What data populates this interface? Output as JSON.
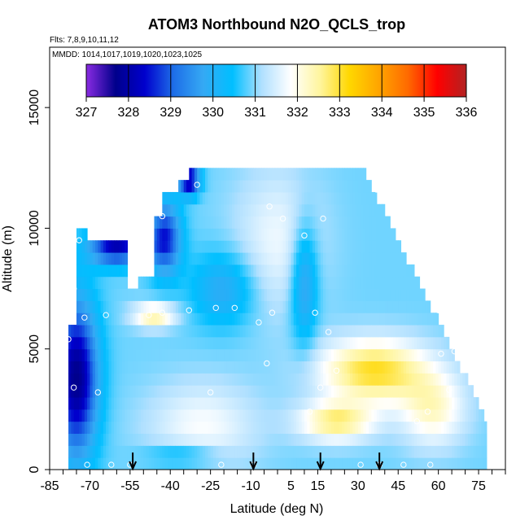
{
  "chart_data": {
    "type": "heatmap",
    "title": "ATOM3 Northbound N2O_QCLS_trop",
    "flights_note": "Flts: 7,8,9,10,11,12",
    "dates_note": "MMDD: 1014,1017,1019,1020,1023,1025",
    "xlabel": "Latitude (deg N)",
    "ylabel": "Altitude (m)",
    "xlim": [
      -85,
      85
    ],
    "ylim": [
      0,
      17500
    ],
    "x_ticks": [
      "-85",
      "-70",
      "-55",
      "-40",
      "-25",
      "-10",
      "5",
      "15",
      "30",
      "45",
      "60",
      "75"
    ],
    "x_tick_values": [
      -85,
      -70,
      -55,
      -40,
      -25,
      -10,
      5,
      15,
      30,
      45,
      60,
      75
    ],
    "y_ticks": [
      "0",
      "5000",
      "10000",
      "15000"
    ],
    "y_tick_values": [
      0,
      5000,
      10000,
      15000
    ],
    "colorbar": {
      "ticks": [
        "327",
        "328",
        "329",
        "330",
        "331",
        "332",
        "333",
        "334",
        "335",
        "336"
      ],
      "min": 327,
      "max": 336,
      "colors": [
        "#8a2be2",
        "#00008b",
        "#0000cd",
        "#1e6fe8",
        "#35a9f4",
        "#00bfff",
        "#b0e0ff",
        "#ffffff",
        "#fff59d",
        "#ffd700",
        "#ffa500",
        "#ff6a00",
        "#ff0000",
        "#b22222"
      ]
    },
    "arrows_lat": [
      -54,
      -9,
      16,
      38
    ],
    "observations": [
      [
        -78,
        5400
      ],
      [
        -76,
        3400
      ],
      [
        -76,
        7500
      ],
      [
        -74,
        9500
      ],
      [
        -72,
        6300
      ],
      [
        -67,
        3200
      ],
      [
        -64,
        6400
      ],
      [
        -53,
        8900
      ],
      [
        -48,
        6400
      ],
      [
        -43,
        6500
      ],
      [
        -33,
        6600
      ],
      [
        -23,
        6700
      ],
      [
        -16,
        6700
      ],
      [
        -7,
        6100
      ],
      [
        -4,
        4400
      ],
      [
        -3,
        10900
      ],
      [
        -2,
        6500
      ],
      [
        2,
        10400
      ],
      [
        10,
        9700
      ],
      [
        14,
        6500
      ],
      [
        16,
        3400
      ],
      [
        19,
        5700
      ],
      [
        22,
        4100
      ],
      [
        12,
        2400
      ],
      [
        17,
        10400
      ],
      [
        37,
        11600
      ],
      [
        52,
        2000
      ],
      [
        56,
        2400
      ],
      [
        60,
        6600
      ],
      [
        61,
        4800
      ],
      [
        64,
        3300
      ],
      [
        65,
        6800
      ],
      [
        66,
        4900
      ],
      [
        72,
        6600
      ],
      [
        -25,
        3200
      ],
      [
        -30,
        11800
      ],
      [
        -43,
        10500
      ],
      [
        -71,
        200
      ],
      [
        -62,
        200
      ],
      [
        -55,
        200
      ],
      [
        -21,
        200
      ],
      [
        31,
        200
      ],
      [
        38,
        200
      ],
      [
        47,
        200
      ],
      [
        57,
        200
      ],
      [
        -9,
        200
      ]
    ]
  }
}
